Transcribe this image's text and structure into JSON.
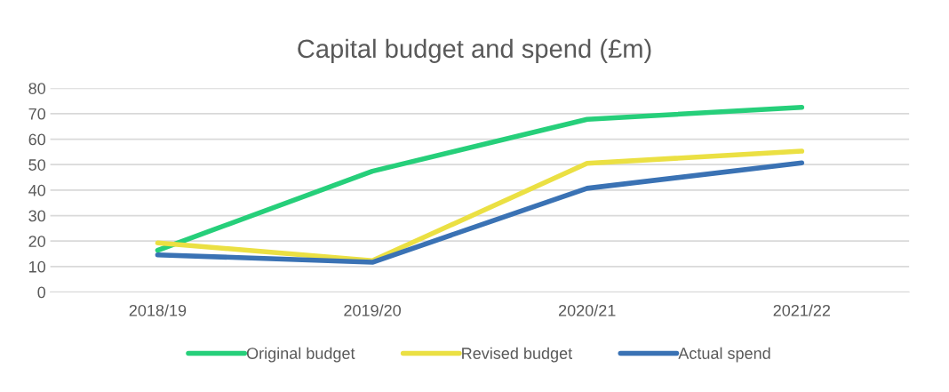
{
  "chart_data": {
    "type": "line",
    "title": "Capital budget and spend (£m)",
    "categories": [
      "2018/19",
      "2019/20",
      "2020/21",
      "2021/22"
    ],
    "series": [
      {
        "name": "Original budget",
        "color": "#26cf7a",
        "values": [
          16.4,
          47.4,
          67.8,
          72.5
        ]
      },
      {
        "name": "Revised budget",
        "color": "#ebe043",
        "values": [
          19.3,
          12.3,
          50.5,
          55.3
        ]
      },
      {
        "name": "Actual spend",
        "color": "#3a72b4",
        "values": [
          14.6,
          11.7,
          40.7,
          50.7
        ]
      }
    ],
    "ylim": [
      0,
      80
    ],
    "yticks": [
      0,
      10,
      20,
      30,
      40,
      50,
      60,
      70,
      80
    ],
    "grid": "y",
    "legend": "bottom",
    "marker": "none",
    "line_style": "solid"
  }
}
